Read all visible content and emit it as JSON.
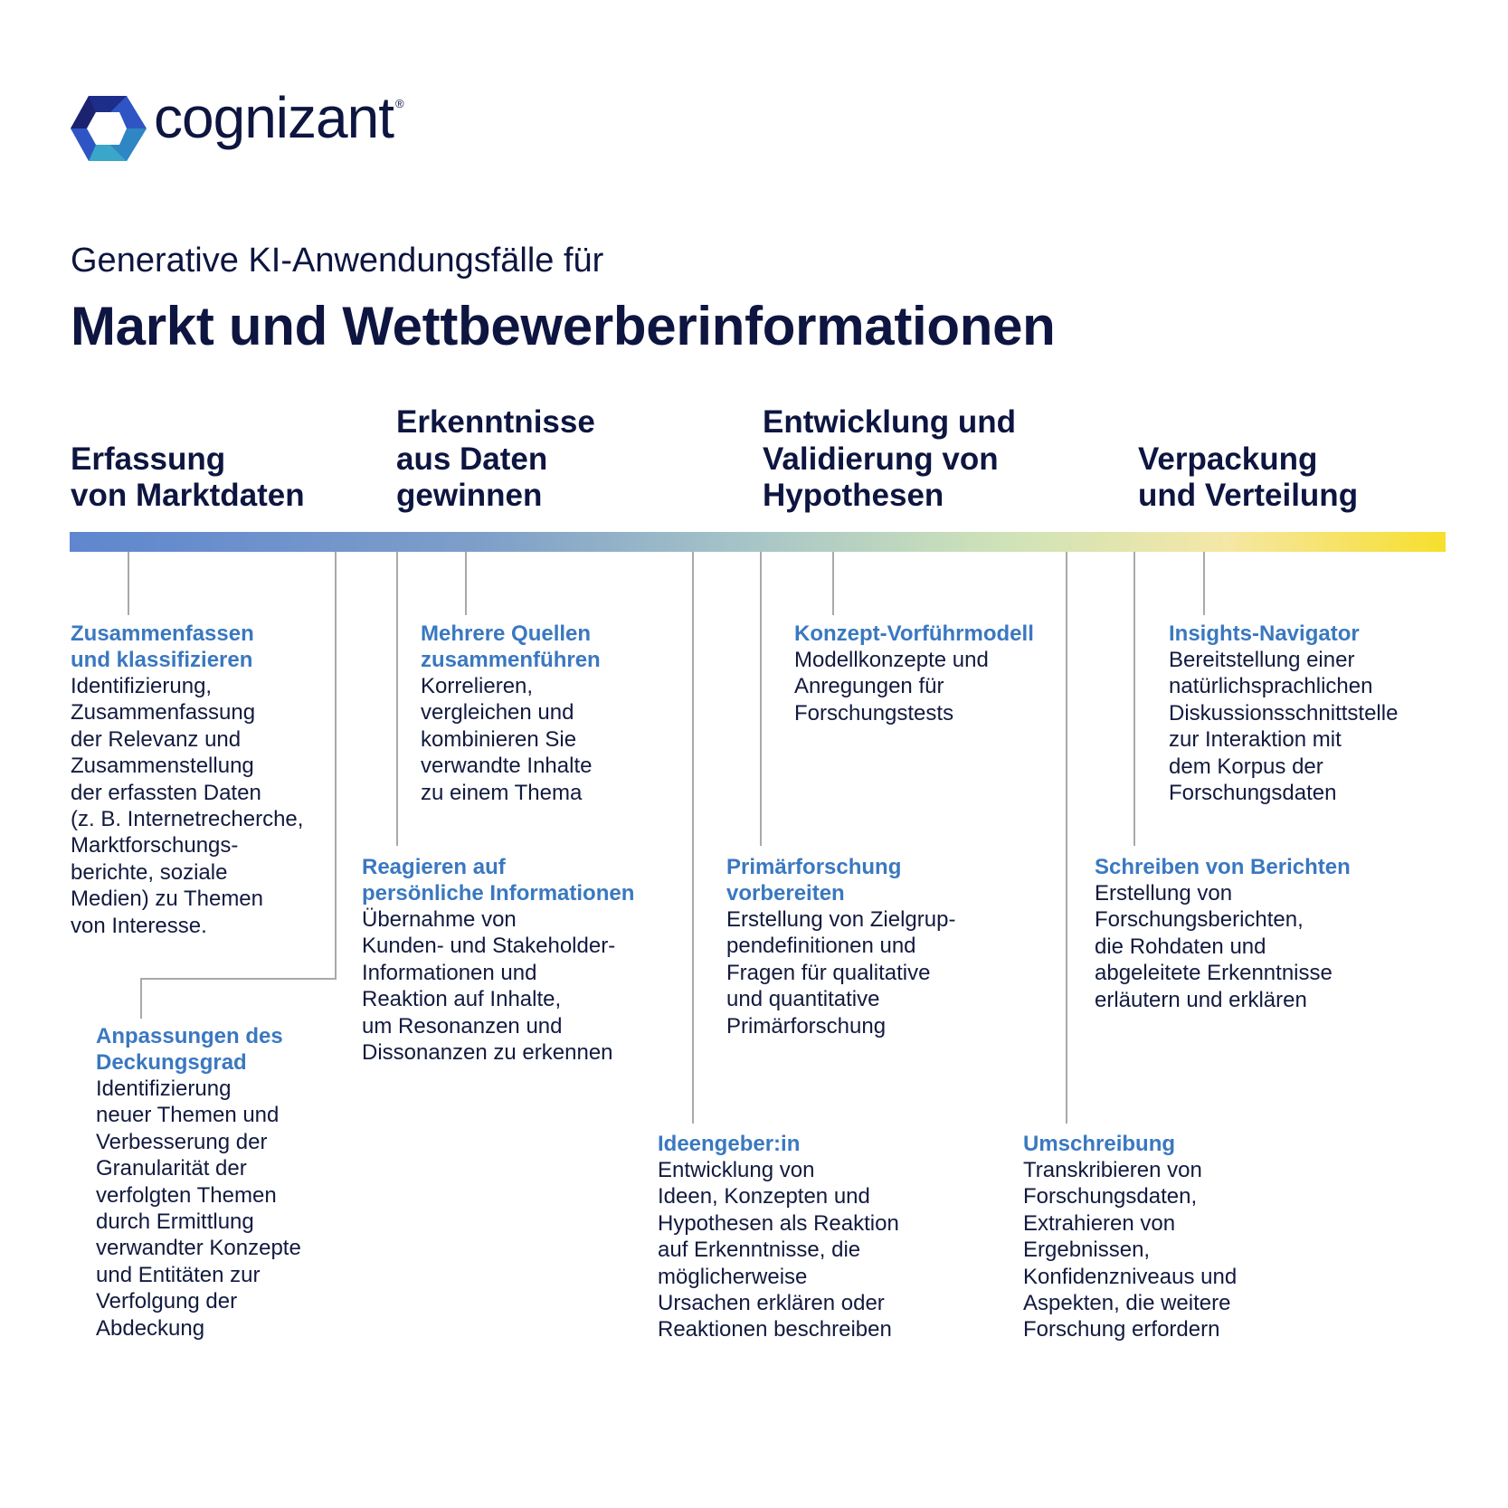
{
  "brand": {
    "name": "cognizant",
    "registered_mark": "®",
    "colors": {
      "dark": "#0d1540",
      "blue": "#2f55c4",
      "teal": "#3aa6c9",
      "accent_heading": "#3a78c0"
    }
  },
  "header": {
    "subtitle": "Generative KI-Anwendungsfälle für",
    "title": "Markt und Wettbewerberinformationen"
  },
  "timeline": {
    "gradient_colors": [
      "#5f86cf",
      "#a8c6c7",
      "#cfe3b8",
      "#f7df2c"
    ]
  },
  "phases": [
    {
      "label": "Erfassung\nvon Marktdaten"
    },
    {
      "label": "Erkenntnisse\naus Daten\ngewinnen"
    },
    {
      "label": "Entwicklung und\nValidierung von\nHypothesen"
    },
    {
      "label": "Verpackung\nund Verteilung"
    }
  ],
  "use_cases": [
    {
      "title": "Zusammenfassen\nund klassifizieren",
      "description": "Identifizierung,\nZusammenfassung\nder Relevanz und\nZusammenstellung\nder erfassten Daten\n(z. B. Internetrecherche,\nMarktforschungs-\nberichte, soziale\nMedien) zu Themen\nvon Interesse."
    },
    {
      "title": "Anpassungen des\nDeckungsgrad",
      "description": "Identifizierung\nneuer Themen und\nVerbesserung der\nGranularität der\nverfolgten Themen\ndurch Ermittlung\nverwandter Konzepte\nund Entitäten zur\nVerfolgung der\nAbdeckung"
    },
    {
      "title": "Mehrere Quellen\nzusammenführen",
      "description": "Korrelieren,\nvergleichen und\nkombinieren Sie\nverwandte Inhalte\nzu einem Thema"
    },
    {
      "title": "Reagieren auf\npersönliche Informationen",
      "description": "Übernahme von\nKunden- und Stakeholder-\nInformationen und\nReaktion auf Inhalte,\num Resonanzen und\nDissonanzen zu erkennen"
    },
    {
      "title": "Konzept-Vorführmodell",
      "description": "Modellkonzepte und\nAnregungen für\nForschungstests"
    },
    {
      "title": "Primärforschung\nvorbereiten",
      "description": "Erstellung von Zielgrup-\npendefinitionen und\nFragen für qualitative\nund quantitative\nPrimärforschung"
    },
    {
      "title": "Ideengeber:in",
      "description": "Entwicklung von\nIdeen, Konzepten und\nHypothesen als Reaktion\nauf Erkenntnisse, die\nmöglicherweise\nUrsachen erklären oder\nReaktionen beschreiben"
    },
    {
      "title": "Insights-Navigator",
      "description": "Bereitstellung einer\nnatürlichsprachlichen\nDiskussionsschnittstelle\nzur Interaktion mit\ndem Korpus der\nForschungsdaten"
    },
    {
      "title": "Schreiben von Berichten",
      "description": "Erstellung von\nForschungsberichten,\ndie Rohdaten und\nabgeleitete Erkenntnisse\nerläutern und erklären"
    },
    {
      "title": "Umschreibung",
      "description": "Transkribieren von\nForschungsdaten,\nExtrahieren von\nErgebnissen,\nKonfidenzniveaus und\nAspekten, die weitere\nForschung erfordern"
    }
  ]
}
